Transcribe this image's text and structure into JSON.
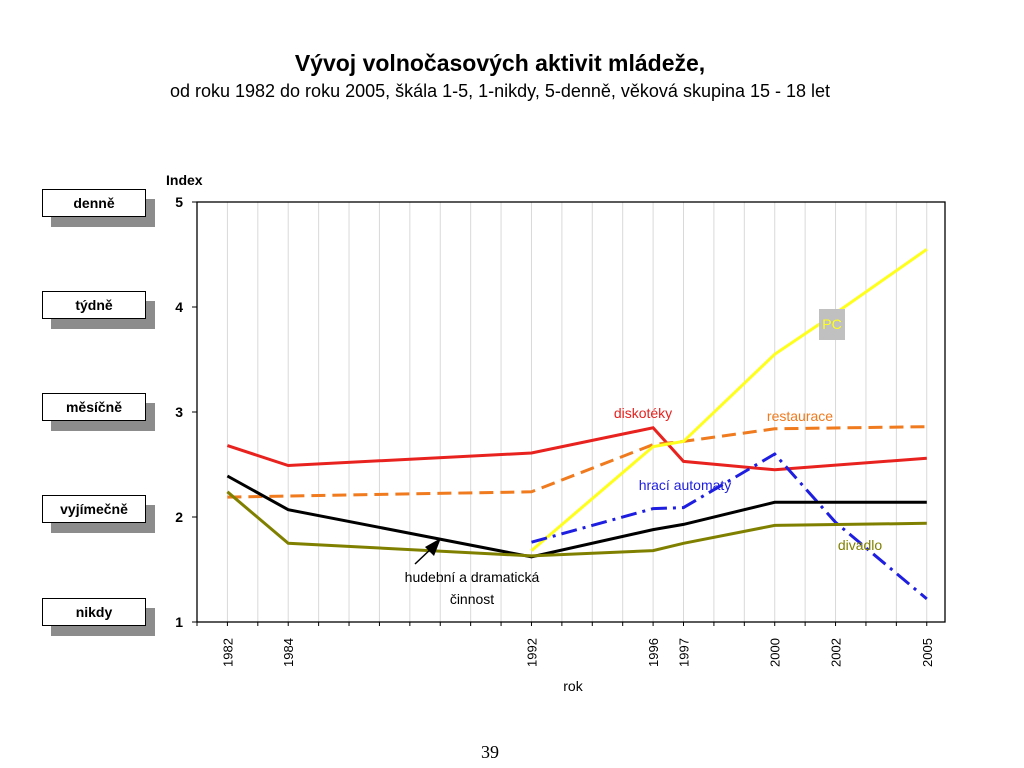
{
  "title": "Vývoj volnočasových aktivit mládeže,",
  "subtitle": "od roku 1982 do roku 2005, škála 1-5, 1-nikdy,  5-denně, věková skupina 15 - 18 let",
  "scale_labels": [
    "denně",
    "týdně",
    "měsíčně",
    "vyjímečně",
    "nikdy"
  ],
  "page_number": "39",
  "chart_data": {
    "type": "line",
    "ylabel": "Index",
    "xlabel": "rok",
    "ylim": [
      1,
      5
    ],
    "xlim": [
      1981,
      2005.6
    ],
    "yticks": [
      1,
      2,
      3,
      4,
      5
    ],
    "xticks": [
      1982,
      1984,
      1992,
      1996,
      1997,
      2000,
      2002,
      2005
    ],
    "grid": "vertical",
    "series": [
      {
        "name": "diskotéky",
        "color": "#e8221e",
        "dash": "solid",
        "x": [
          1982,
          1984,
          1992,
          1996,
          1997,
          2000,
          2005
        ],
        "y": [
          2.68,
          2.49,
          2.61,
          2.85,
          2.53,
          2.45,
          2.56
        ]
      },
      {
        "name": "restaurace",
        "color": "#f07a1e",
        "dash": "dashed",
        "x": [
          1982,
          1984,
          1992,
          1996,
          1997,
          2000,
          2005
        ],
        "y": [
          2.19,
          2.2,
          2.24,
          2.69,
          2.72,
          2.84,
          2.86
        ]
      },
      {
        "name": "PC",
        "color": "#ffff1e",
        "dash": "solid",
        "x": [
          1992,
          1996,
          1997,
          2000,
          2002,
          2005
        ],
        "y": [
          1.68,
          2.67,
          2.72,
          3.55,
          3.94,
          4.55
        ]
      },
      {
        "name": "hrací automaty",
        "color": "#1e1ee0",
        "dash": "dashdot",
        "x": [
          1992,
          1996,
          1997,
          2000,
          2002,
          2005
        ],
        "y": [
          1.76,
          2.08,
          2.09,
          2.6,
          1.95,
          1.22
        ]
      },
      {
        "name": "",
        "color": "#000000",
        "dash": "solid",
        "x": [
          1982,
          1984,
          1992,
          1996,
          1997,
          2000,
          2005
        ],
        "y": [
          2.39,
          2.07,
          1.62,
          1.88,
          1.93,
          2.14,
          2.14
        ]
      },
      {
        "name": "divadlo",
        "color": "#808000",
        "dash": "solid",
        "x": [
          1982,
          1984,
          1992,
          1996,
          1997,
          2000,
          2005
        ],
        "y": [
          2.24,
          1.75,
          1.63,
          1.68,
          1.75,
          1.92,
          1.94
        ]
      }
    ],
    "annotations": [
      {
        "text": "diskotéky",
        "color": "#e8221e"
      },
      {
        "text": "restaurace",
        "color": "#f07a1e"
      },
      {
        "text": "PC",
        "color": "#ffff1e",
        "background": "#c0c0c0"
      },
      {
        "text": "hrací automaty",
        "color": "#1e1ee0"
      },
      {
        "text": "divadlo",
        "color": "#808000"
      },
      {
        "text": "hudební a dramatická",
        "color": "#000000"
      },
      {
        "text": "činnost",
        "color": "#000000"
      }
    ]
  }
}
